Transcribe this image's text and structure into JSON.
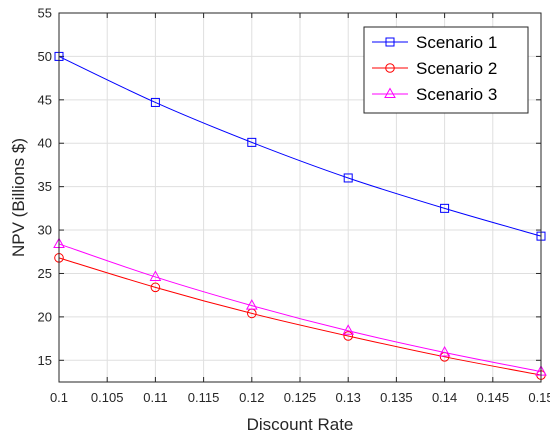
{
  "chart_data": {
    "type": "line",
    "xlabel": "Discount Rate",
    "ylabel": "NPV (Billions $)",
    "xlim": [
      0.1,
      0.15
    ],
    "ylim": [
      12.5,
      55
    ],
    "grid": true,
    "legend_position": "top-right",
    "x_ticks": [
      0.1,
      0.105,
      0.11,
      0.115,
      0.12,
      0.125,
      0.13,
      0.135,
      0.14,
      0.145,
      0.15
    ],
    "x_tick_labels": [
      "0.1",
      "0.105",
      "0.11",
      "0.115",
      "0.12",
      "0.125",
      "0.13",
      "0.135",
      "0.14",
      "0.145",
      "0.15"
    ],
    "y_ticks": [
      15,
      20,
      25,
      30,
      35,
      40,
      45,
      50,
      55
    ],
    "y_tick_labels": [
      "15",
      "20",
      "25",
      "30",
      "35",
      "40",
      "45",
      "50",
      "55"
    ],
    "x": [
      0.1,
      0.11,
      0.12,
      0.13,
      0.14,
      0.15
    ],
    "series": [
      {
        "name": "Scenario 1",
        "color": "#0000ff",
        "marker": "square",
        "values": [
          50.0,
          44.7,
          40.1,
          36.0,
          32.5,
          29.3
        ]
      },
      {
        "name": "Scenario 2",
        "color": "#ff0000",
        "marker": "circle",
        "values": [
          26.8,
          23.4,
          20.4,
          17.8,
          15.4,
          13.3
        ]
      },
      {
        "name": "Scenario 3",
        "color": "#ff00ff",
        "marker": "triangle",
        "values": [
          28.4,
          24.6,
          21.3,
          18.4,
          15.9,
          13.7
        ]
      }
    ]
  }
}
